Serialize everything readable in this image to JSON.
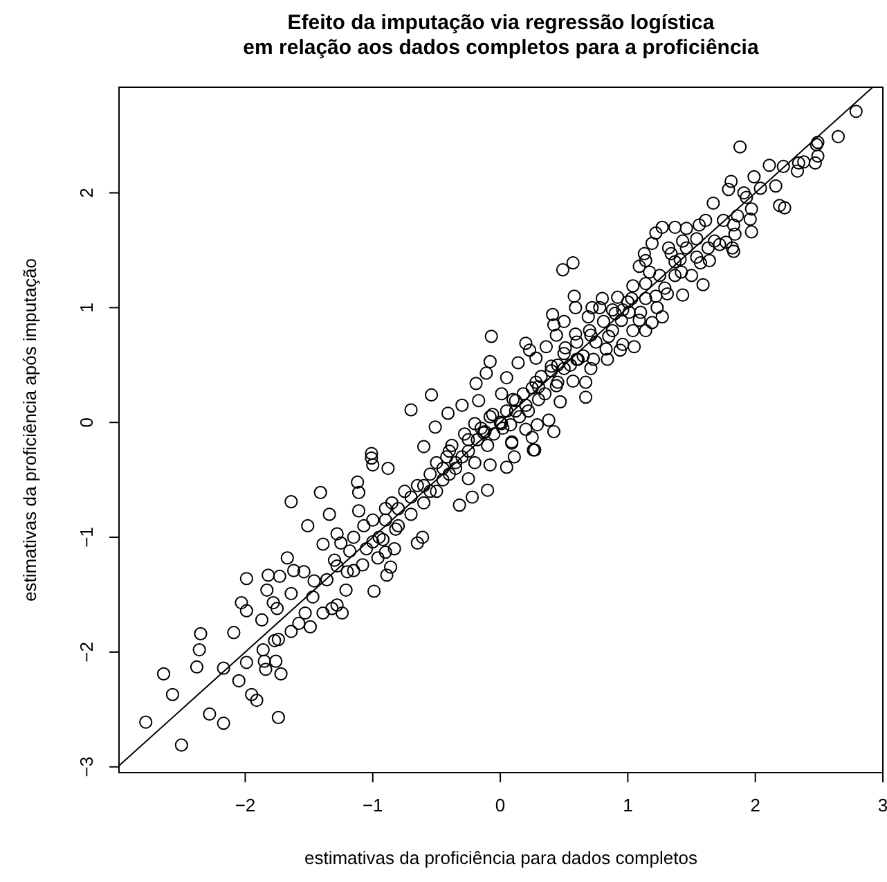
{
  "chart_data": {
    "type": "scatter",
    "title": "Efeito da imputação via regressão logística\nem relação aos dados completos para a proficiência",
    "xlabel": "estimativas da proficiência para dados completos",
    "ylabel": "estimativas da proficiência após imputação",
    "xlim": [
      -2.99,
      3.0
    ],
    "ylim": [
      -3.05,
      2.92
    ],
    "xticks": [
      -2,
      -1,
      0,
      1,
      2,
      3
    ],
    "yticks": [
      -3,
      -2,
      -1,
      0,
      1,
      2
    ],
    "grid": false,
    "marker": "circle",
    "series": [
      {
        "color": "#000000",
        "x": [
          -2.78,
          -2.64,
          -2.57,
          -2.5,
          -2.38,
          -2.36,
          -2.35,
          -2.28,
          -2.17,
          -2.17,
          -2.09,
          -2.05,
          -2.03,
          -1.99,
          -1.99,
          -1.99,
          -1.95,
          -1.91,
          -1.87,
          -1.86,
          -1.85,
          -1.84,
          -1.82,
          -1.83,
          -1.78,
          -1.76,
          -1.77,
          -1.74,
          -1.72,
          -1.74,
          -1.75,
          -1.73,
          -1.67,
          -1.64,
          -1.64,
          -1.64,
          -1.62,
          -1.58,
          -1.54,
          -1.53,
          -1.51,
          -1.49,
          -1.47,
          -1.46,
          -1.41,
          -1.39,
          -1.39,
          -1.36,
          -1.34,
          -1.32,
          -1.28,
          -1.28,
          -1.28,
          -1.24,
          -1.21,
          -1.18,
          -1.15,
          -1.12,
          -1.11,
          -1.11,
          -1.08,
          -1.07,
          -1.01,
          -1.0,
          -0.99,
          -1.0,
          -0.96,
          -0.92,
          -0.9,
          -0.89,
          -0.86,
          -0.83,
          -0.88,
          -0.82,
          -0.65,
          -0.61,
          2.79,
          2.65,
          2.49,
          2.48,
          2.49,
          2.47,
          2.38,
          2.34,
          2.33,
          2.22,
          2.11,
          1.88,
          1.99,
          1.81,
          1.79,
          2.16,
          2.04,
          1.91,
          1.93,
          2.19,
          2.23,
          1.67,
          1.97,
          1.86,
          1.96,
          1.61,
          1.75,
          1.83,
          1.97,
          1.84,
          1.56,
          1.46,
          1.37,
          1.27,
          1.22,
          1.54,
          1.68,
          1.77,
          1.82,
          1.83,
          1.72,
          1.43,
          1.32,
          1.19,
          1.13,
          1.34,
          1.46,
          1.54,
          1.63,
          1.64,
          1.57,
          1.41,
          1.37,
          1.09,
          1.14,
          0.49,
          0.57,
          1.59,
          1.5,
          1.42,
          1.37,
          1.25,
          1.17,
          1.14,
          1.04,
          1.43,
          1.31,
          1.22,
          1.29,
          1.14,
          1.03,
          0.92,
          0.58,
          0.72,
          0.59,
          0.78,
          0.8,
          0.88,
          0.96,
          1.01,
          1.1,
          1.23,
          1.09,
          0.95,
          1.19,
          1.27,
          0.41,
          0.42,
          0.5,
          0.69,
          0.81,
          0.88,
          1.04,
          1.14,
          -0.07,
          0.44,
          0.59,
          0.71,
          0.96,
          1.05,
          0.2,
          0.23,
          0.36,
          0.51,
          0.83,
          0.94,
          0.84,
          -0.08,
          -0.19,
          -0.11,
          0.14,
          0.28,
          0.61,
          0.71,
          0.73,
          0.4,
          0.5,
          0.67,
          0.57,
          0.44,
          0.67,
          0.47,
          0.38,
          0.29,
          0.42,
          0.2,
          0.25,
          0.26,
          0.09,
          -0.3,
          -0.17,
          0.05,
          0.01,
          0.12,
          0.3,
          0.2,
          -0.06,
          -0.2,
          -0.13,
          0.01,
          0.27,
          0.09,
          0.11,
          0.05,
          -0.08,
          -0.1,
          -0.22,
          -0.32,
          -0.25,
          -0.54,
          -0.7,
          -0.41,
          -0.51,
          -0.6,
          -1.01,
          -0.9,
          -0.85,
          -0.8,
          -0.75,
          -0.7,
          -0.65,
          -0.6,
          -0.55,
          -0.5,
          -0.5,
          -0.45,
          -0.42,
          -0.4,
          -0.38,
          -0.35,
          -0.3,
          -0.28,
          -0.25,
          -0.2,
          -0.18,
          -0.15,
          -0.1,
          -0.08,
          -0.05,
          0,
          0.02,
          0.05,
          0.08,
          0.1,
          0.15,
          0.18,
          0.22,
          0.25,
          0.3,
          0.32,
          0.35,
          0.4,
          0.45,
          0.5,
          0.55,
          0.6,
          0.65,
          0.7,
          -1.3,
          -1.25,
          -1.2,
          -1.15,
          -1.05,
          -1.0,
          -0.95,
          -0.9,
          -0.7,
          -0.6,
          -0.45,
          -0.35,
          -0.25,
          -0.12,
          0.12,
          0.28,
          0.45,
          0.6,
          0.75,
          0.85,
          0.9,
          1.0,
          -0.8,
          -0.55,
          -0.4
        ],
        "values": [
          -2.61,
          -2.19,
          -2.37,
          -2.81,
          -2.13,
          -1.98,
          -1.84,
          -2.54,
          -2.62,
          -2.14,
          -1.83,
          -2.25,
          -1.57,
          -2.09,
          -1.64,
          -1.36,
          -2.37,
          -2.42,
          -1.72,
          -1.98,
          -2.08,
          -2.15,
          -1.33,
          -1.46,
          -1.57,
          -2.08,
          -1.9,
          -2.57,
          -2.19,
          -1.89,
          -1.62,
          -1.34,
          -1.18,
          -0.69,
          -1.82,
          -1.49,
          -1.29,
          -1.75,
          -1.3,
          -1.66,
          -0.9,
          -1.78,
          -1.52,
          -1.38,
          -0.61,
          -1.66,
          -1.06,
          -1.37,
          -0.8,
          -1.62,
          -1.59,
          -0.97,
          -1.25,
          -1.66,
          -1.46,
          -1.12,
          -1.29,
          -0.52,
          -0.77,
          -0.61,
          -1.24,
          -0.9,
          -0.31,
          -0.37,
          -1.47,
          -1.04,
          -1.18,
          -1.02,
          -1.13,
          -1.33,
          -1.26,
          -1.1,
          -0.4,
          -0.93,
          -1.05,
          -1.0,
          2.71,
          2.49,
          2.44,
          2.42,
          2.32,
          2.26,
          2.27,
          2.26,
          2.19,
          2.23,
          2.24,
          2.4,
          2.14,
          2.1,
          2.03,
          2.06,
          2.04,
          2.0,
          1.96,
          1.89,
          1.87,
          1.91,
          1.86,
          1.8,
          1.77,
          1.76,
          1.76,
          1.72,
          1.66,
          1.64,
          1.72,
          1.69,
          1.7,
          1.7,
          1.65,
          1.6,
          1.58,
          1.57,
          1.52,
          1.49,
          1.55,
          1.58,
          1.52,
          1.56,
          1.47,
          1.47,
          1.52,
          1.44,
          1.52,
          1.41,
          1.39,
          1.42,
          1.4,
          1.36,
          1.41,
          1.33,
          1.39,
          1.2,
          1.28,
          1.31,
          1.28,
          1.28,
          1.31,
          1.21,
          1.19,
          1.11,
          1.12,
          1.1,
          1.17,
          1.08,
          1.08,
          1.09,
          1.1,
          1.0,
          1.0,
          1.0,
          1.08,
          0.98,
          0.98,
          0.96,
          0.96,
          1.0,
          0.89,
          0.89,
          0.87,
          0.92,
          0.94,
          0.85,
          0.88,
          0.92,
          0.88,
          0.8,
          0.8,
          0.8,
          0.75,
          0.76,
          0.77,
          0.76,
          0.68,
          0.66,
          0.69,
          0.63,
          0.66,
          0.65,
          0.64,
          0.63,
          0.55,
          0.53,
          0.34,
          0.43,
          0.52,
          0.56,
          0.55,
          0.47,
          0.55,
          0.49,
          0.47,
          0.35,
          0.36,
          0.32,
          0.22,
          0.18,
          0.02,
          -0.02,
          -0.08,
          -0.06,
          -0.13,
          -0.24,
          -0.17,
          0.15,
          0.19,
          0.39,
          0.25,
          0.19,
          0.31,
          0.15,
          0.07,
          -0.01,
          -0.09,
          -0.01,
          -0.24,
          -0.18,
          -0.3,
          -0.39,
          -0.37,
          -0.59,
          -0.65,
          -0.72,
          -0.49,
          0.24,
          0.11,
          0.08,
          -0.04,
          -0.21,
          -0.27,
          -0.85,
          -0.7,
          -0.9,
          -0.6,
          -0.8,
          -0.55,
          -0.7,
          -0.45,
          -0.6,
          -0.35,
          -0.5,
          -0.3,
          -0.45,
          -0.2,
          -0.4,
          -0.3,
          -0.1,
          -0.25,
          -0.35,
          -0.15,
          -0.05,
          -0.2,
          0.05,
          -0.1,
          0,
          -0.05,
          0.1,
          -0.02,
          0.2,
          0.05,
          0.25,
          0.1,
          0.3,
          0.2,
          0.4,
          0.25,
          0.45,
          0.35,
          0.6,
          0.5,
          0.7,
          0.58,
          0.8,
          -1.2,
          -1.05,
          -1.3,
          -1.0,
          -1.1,
          -0.85,
          -1.0,
          -0.75,
          -0.65,
          -0.55,
          -0.4,
          -0.35,
          -0.15,
          -0.08,
          0.1,
          0.35,
          0.5,
          0.55,
          0.7,
          0.75,
          0.95,
          1.05,
          -0.75,
          -0.6,
          -0.25
        ]
      },
      {
        "type": "line",
        "color": "#000000",
        "marker": "none",
        "line_style": "solid",
        "x": [
          -2.99,
          2.92
        ],
        "values": [
          -2.99,
          2.92
        ]
      }
    ]
  }
}
